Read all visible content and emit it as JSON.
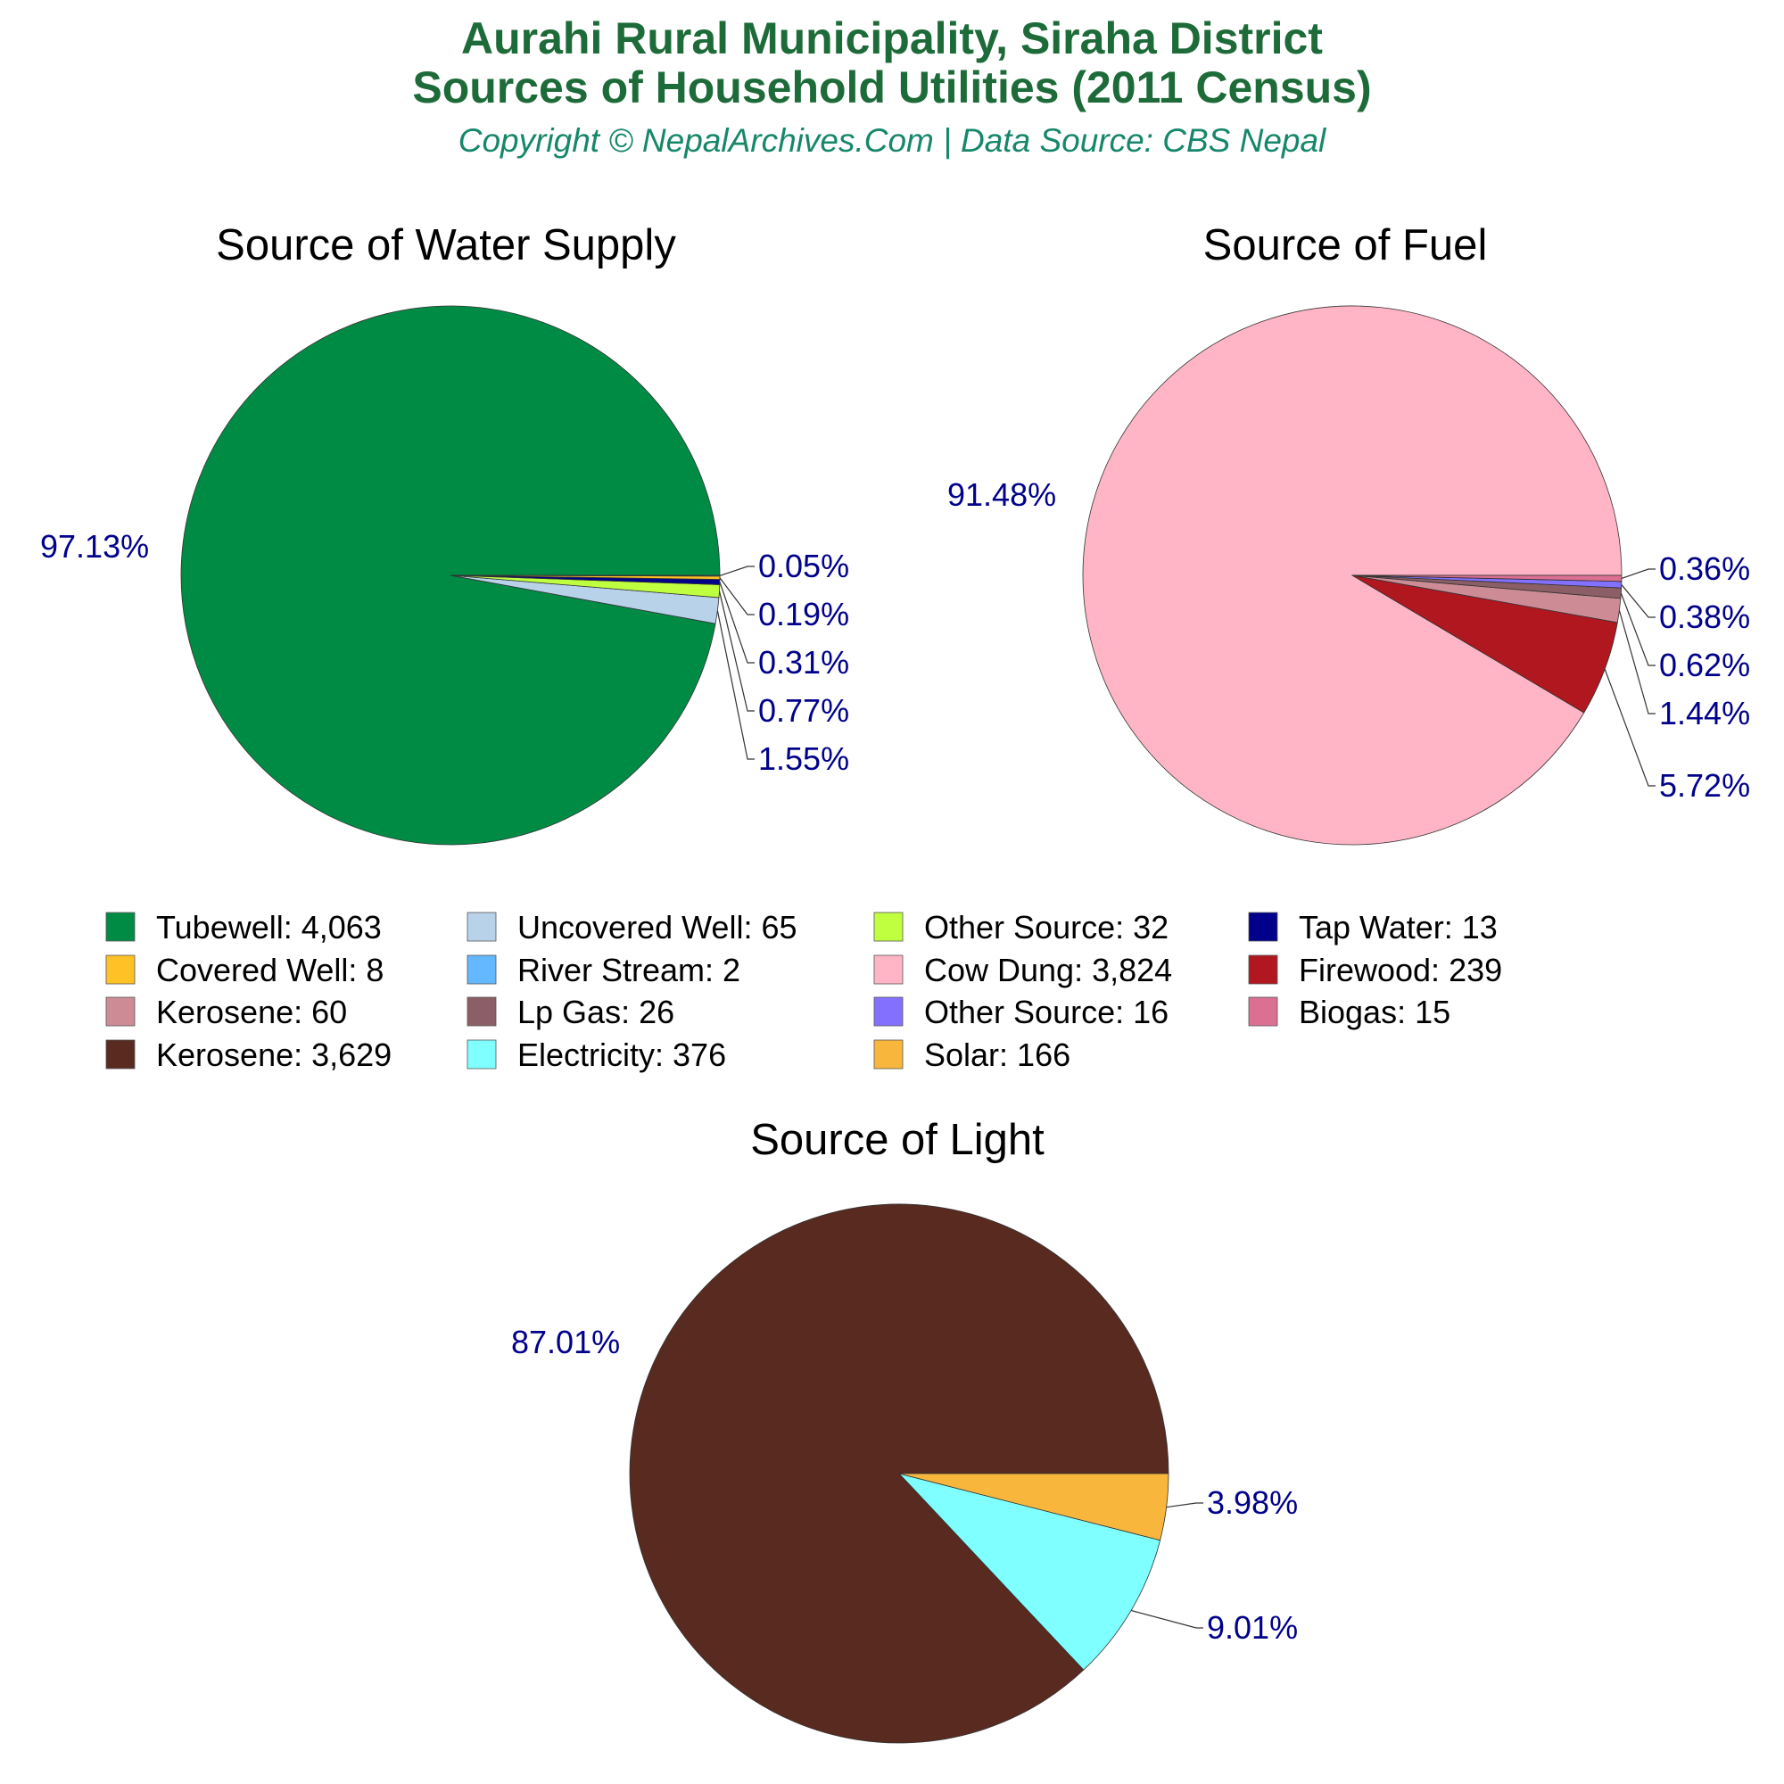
{
  "header": {
    "title_line1": "Aurahi Rural Municipality, Siraha District",
    "title_line2": "Sources of Household Utilities (2011 Census)",
    "subtitle": "Copyright © NepalArchives.Com | Data Source: CBS Nepal"
  },
  "chart_data": [
    {
      "type": "pie",
      "title": "Source of Water Supply",
      "slices": [
        {
          "label": "Tubewell",
          "value": 4063,
          "percent_label": "97.13%",
          "color": "#008b45"
        },
        {
          "label": "Uncovered Well",
          "value": 65,
          "percent_label": "1.55%",
          "color": "#b8d2ea"
        },
        {
          "label": "Other Source",
          "value": 32,
          "percent_label": "0.77%",
          "color": "#bfff3f"
        },
        {
          "label": "Tap Water",
          "value": 13,
          "percent_label": "0.31%",
          "color": "#00008b"
        },
        {
          "label": "Covered Well",
          "value": 8,
          "percent_label": "0.19%",
          "color": "#ffc125"
        },
        {
          "label": "River Stream",
          "value": 2,
          "percent_label": "0.05%",
          "color": "#63b8ff"
        }
      ]
    },
    {
      "type": "pie",
      "title": "Source of Fuel",
      "slices": [
        {
          "label": "Cow Dung",
          "value": 3824,
          "percent_label": "91.48%",
          "color": "#ffb5c5"
        },
        {
          "label": "Firewood",
          "value": 239,
          "percent_label": "5.72%",
          "color": "#b0171f"
        },
        {
          "label": "Kerosene",
          "value": 60,
          "percent_label": "1.44%",
          "color": "#cd8c95"
        },
        {
          "label": "Lp Gas",
          "value": 26,
          "percent_label": "0.62%",
          "color": "#8b5f65"
        },
        {
          "label": "Other Source",
          "value": 16,
          "percent_label": "0.38%",
          "color": "#8470ff"
        },
        {
          "label": "Biogas",
          "value": 15,
          "percent_label": "0.36%",
          "color": "#db7093"
        }
      ]
    },
    {
      "type": "pie",
      "title": "Source of Light",
      "slices": [
        {
          "label": "Kerosene",
          "value": 3629,
          "percent_label": "87.01%",
          "color": "#582a20"
        },
        {
          "label": "Electricity",
          "value": 376,
          "percent_label": "9.01%",
          "color": "#7fffff"
        },
        {
          "label": "Solar",
          "value": 166,
          "percent_label": "3.98%",
          "color": "#f8b73c"
        }
      ]
    }
  ],
  "legend": [
    {
      "text": "Tubewell: 4,063",
      "color": "#008b45"
    },
    {
      "text": "Covered Well: 8",
      "color": "#ffc125"
    },
    {
      "text": "Kerosene: 60",
      "color": "#cd8c95"
    },
    {
      "text": "Kerosene: 3,629",
      "color": "#582a20"
    },
    {
      "text": "Uncovered Well: 65",
      "color": "#b8d2ea"
    },
    {
      "text": "River Stream: 2",
      "color": "#63b8ff"
    },
    {
      "text": "Lp Gas: 26",
      "color": "#8b5f65"
    },
    {
      "text": "Electricity: 376",
      "color": "#7fffff"
    },
    {
      "text": "Other Source: 32",
      "color": "#bfff3f"
    },
    {
      "text": "Cow Dung: 3,824",
      "color": "#ffb5c5"
    },
    {
      "text": "Other Source: 16",
      "color": "#8470ff"
    },
    {
      "text": "Solar: 166",
      "color": "#f8b73c"
    },
    {
      "text": "Tap Water: 13",
      "color": "#00008b"
    },
    {
      "text": "Firewood: 239",
      "color": "#b0171f"
    },
    {
      "text": "Biogas: 15",
      "color": "#db7093"
    }
  ]
}
